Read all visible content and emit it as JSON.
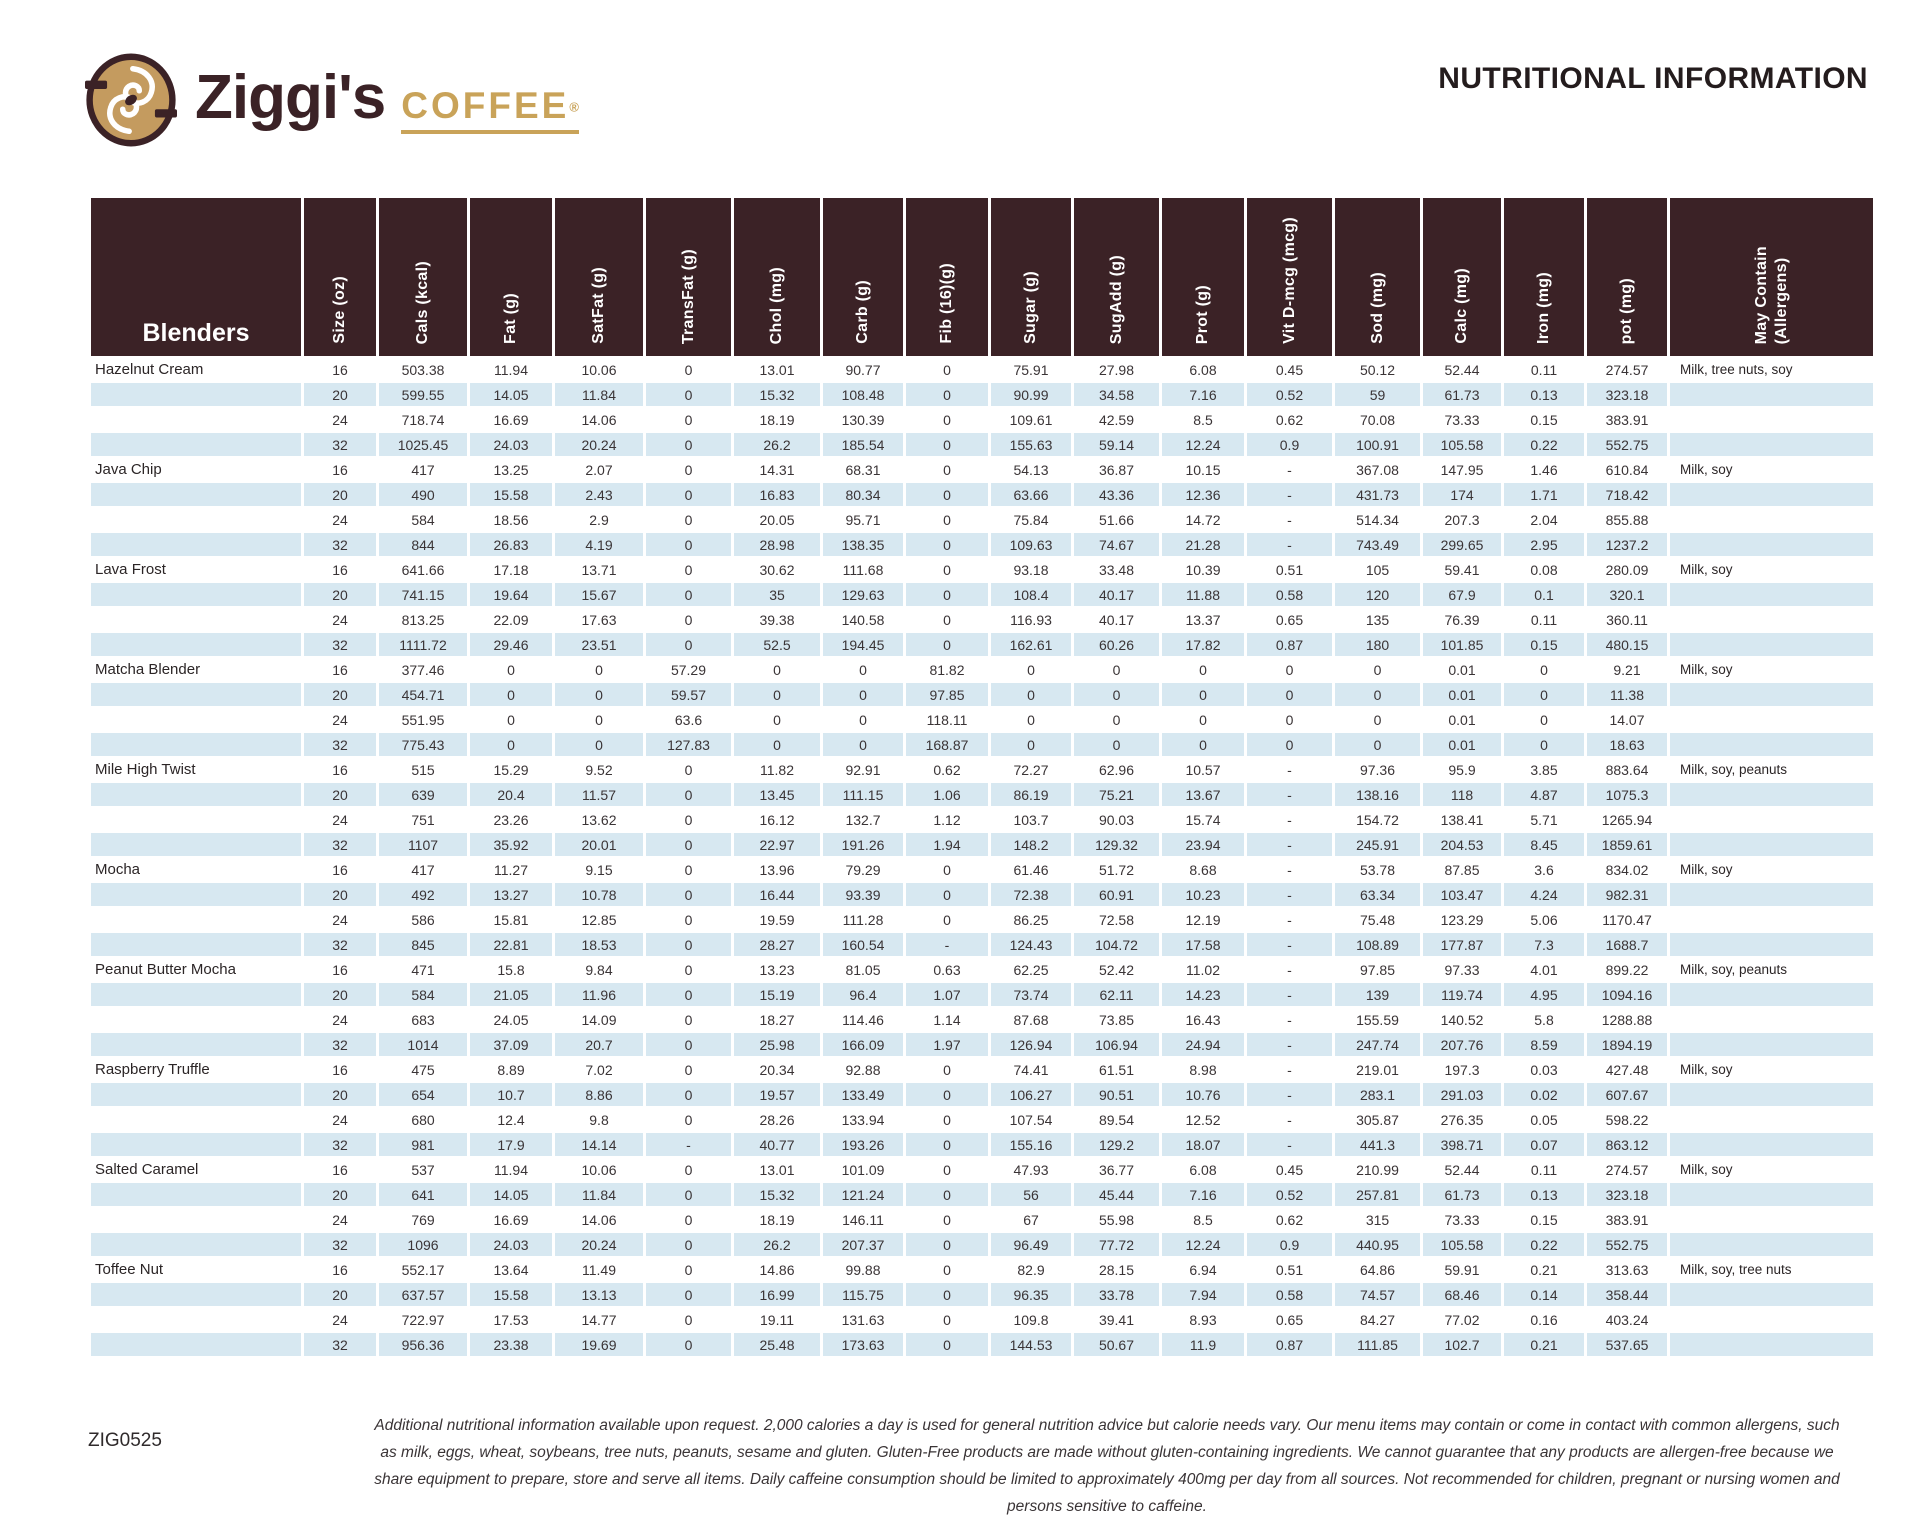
{
  "brand": {
    "name": "Ziggi's",
    "word": "COFFEE",
    "registered": "®"
  },
  "title": "NUTRITIONAL INFORMATION",
  "table": {
    "group_header": "Blenders",
    "columns": [
      "Size (oz)",
      "Cals (kcal)",
      "Fat (g)",
      "SatFat (g)",
      "TransFat (g)",
      "Chol (mg)",
      "Carb (g)",
      "Fib (16)(g)",
      "Sugar (g)",
      "SugAdd (g)",
      "Prot (g)",
      "Vit D-mcg (mcg)",
      "Sod (mg)",
      "Calc (mg)",
      "Iron (mg)",
      "pot (mg)",
      "May Contain\n(Allergens)"
    ],
    "products": [
      {
        "name": "Hazelnut Cream",
        "allergens": "Milk, tree nuts, soy",
        "rows": [
          [
            "16",
            "503.38",
            "11.94",
            "10.06",
            "0",
            "13.01",
            "90.77",
            "0",
            "75.91",
            "27.98",
            "6.08",
            "0.45",
            "50.12",
            "52.44",
            "0.11",
            "274.57"
          ],
          [
            "20",
            "599.55",
            "14.05",
            "11.84",
            "0",
            "15.32",
            "108.48",
            "0",
            "90.99",
            "34.58",
            "7.16",
            "0.52",
            "59",
            "61.73",
            "0.13",
            "323.18"
          ],
          [
            "24",
            "718.74",
            "16.69",
            "14.06",
            "0",
            "18.19",
            "130.39",
            "0",
            "109.61",
            "42.59",
            "8.5",
            "0.62",
            "70.08",
            "73.33",
            "0.15",
            "383.91"
          ],
          [
            "32",
            "1025.45",
            "24.03",
            "20.24",
            "0",
            "26.2",
            "185.54",
            "0",
            "155.63",
            "59.14",
            "12.24",
            "0.9",
            "100.91",
            "105.58",
            "0.22",
            "552.75"
          ]
        ]
      },
      {
        "name": "Java Chip",
        "allergens": "Milk, soy",
        "rows": [
          [
            "16",
            "417",
            "13.25",
            "2.07",
            "0",
            "14.31",
            "68.31",
            "0",
            "54.13",
            "36.87",
            "10.15",
            "-",
            "367.08",
            "147.95",
            "1.46",
            "610.84"
          ],
          [
            "20",
            "490",
            "15.58",
            "2.43",
            "0",
            "16.83",
            "80.34",
            "0",
            "63.66",
            "43.36",
            "12.36",
            "-",
            "431.73",
            "174",
            "1.71",
            "718.42"
          ],
          [
            "24",
            "584",
            "18.56",
            "2.9",
            "0",
            "20.05",
            "95.71",
            "0",
            "75.84",
            "51.66",
            "14.72",
            "-",
            "514.34",
            "207.3",
            "2.04",
            "855.88"
          ],
          [
            "32",
            "844",
            "26.83",
            "4.19",
            "0",
            "28.98",
            "138.35",
            "0",
            "109.63",
            "74.67",
            "21.28",
            "-",
            "743.49",
            "299.65",
            "2.95",
            "1237.2"
          ]
        ]
      },
      {
        "name": "Lava Frost",
        "allergens": "Milk, soy",
        "rows": [
          [
            "16",
            "641.66",
            "17.18",
            "13.71",
            "0",
            "30.62",
            "111.68",
            "0",
            "93.18",
            "33.48",
            "10.39",
            "0.51",
            "105",
            "59.41",
            "0.08",
            "280.09"
          ],
          [
            "20",
            "741.15",
            "19.64",
            "15.67",
            "0",
            "35",
            "129.63",
            "0",
            "108.4",
            "40.17",
            "11.88",
            "0.58",
            "120",
            "67.9",
            "0.1",
            "320.1"
          ],
          [
            "24",
            "813.25",
            "22.09",
            "17.63",
            "0",
            "39.38",
            "140.58",
            "0",
            "116.93",
            "40.17",
            "13.37",
            "0.65",
            "135",
            "76.39",
            "0.11",
            "360.11"
          ],
          [
            "32",
            "1111.72",
            "29.46",
            "23.51",
            "0",
            "52.5",
            "194.45",
            "0",
            "162.61",
            "60.26",
            "17.82",
            "0.87",
            "180",
            "101.85",
            "0.15",
            "480.15"
          ]
        ]
      },
      {
        "name": "Matcha Blender",
        "allergens": "Milk, soy",
        "rows": [
          [
            "16",
            "377.46",
            "0",
            "0",
            "57.29",
            "0",
            "0",
            "81.82",
            "0",
            "0",
            "0",
            "0",
            "0",
            "0.01",
            "0",
            "9.21"
          ],
          [
            "20",
            "454.71",
            "0",
            "0",
            "59.57",
            "0",
            "0",
            "97.85",
            "0",
            "0",
            "0",
            "0",
            "0",
            "0.01",
            "0",
            "11.38"
          ],
          [
            "24",
            "551.95",
            "0",
            "0",
            "63.6",
            "0",
            "0",
            "118.11",
            "0",
            "0",
            "0",
            "0",
            "0",
            "0.01",
            "0",
            "14.07"
          ],
          [
            "32",
            "775.43",
            "0",
            "0",
            "127.83",
            "0",
            "0",
            "168.87",
            "0",
            "0",
            "0",
            "0",
            "0",
            "0.01",
            "0",
            "18.63"
          ]
        ]
      },
      {
        "name": "Mile High Twist",
        "allergens": "Milk, soy, peanuts",
        "rows": [
          [
            "16",
            "515",
            "15.29",
            "9.52",
            "0",
            "11.82",
            "92.91",
            "0.62",
            "72.27",
            "62.96",
            "10.57",
            "-",
            "97.36",
            "95.9",
            "3.85",
            "883.64"
          ],
          [
            "20",
            "639",
            "20.4",
            "11.57",
            "0",
            "13.45",
            "111.15",
            "1.06",
            "86.19",
            "75.21",
            "13.67",
            "-",
            "138.16",
            "118",
            "4.87",
            "1075.3"
          ],
          [
            "24",
            "751",
            "23.26",
            "13.62",
            "0",
            "16.12",
            "132.7",
            "1.12",
            "103.7",
            "90.03",
            "15.74",
            "-",
            "154.72",
            "138.41",
            "5.71",
            "1265.94"
          ],
          [
            "32",
            "1107",
            "35.92",
            "20.01",
            "0",
            "22.97",
            "191.26",
            "1.94",
            "148.2",
            "129.32",
            "23.94",
            "-",
            "245.91",
            "204.53",
            "8.45",
            "1859.61"
          ]
        ]
      },
      {
        "name": "Mocha",
        "allergens": "Milk, soy",
        "rows": [
          [
            "16",
            "417",
            "11.27",
            "9.15",
            "0",
            "13.96",
            "79.29",
            "0",
            "61.46",
            "51.72",
            "8.68",
            "-",
            "53.78",
            "87.85",
            "3.6",
            "834.02"
          ],
          [
            "20",
            "492",
            "13.27",
            "10.78",
            "0",
            "16.44",
            "93.39",
            "0",
            "72.38",
            "60.91",
            "10.23",
            "-",
            "63.34",
            "103.47",
            "4.24",
            "982.31"
          ],
          [
            "24",
            "586",
            "15.81",
            "12.85",
            "0",
            "19.59",
            "111.28",
            "0",
            "86.25",
            "72.58",
            "12.19",
            "-",
            "75.48",
            "123.29",
            "5.06",
            "1170.47"
          ],
          [
            "32",
            "845",
            "22.81",
            "18.53",
            "0",
            "28.27",
            "160.54",
            "-",
            "124.43",
            "104.72",
            "17.58",
            "-",
            "108.89",
            "177.87",
            "7.3",
            "1688.7"
          ]
        ]
      },
      {
        "name": "Peanut Butter Mocha",
        "allergens": "Milk, soy, peanuts",
        "rows": [
          [
            "16",
            "471",
            "15.8",
            "9.84",
            "0",
            "13.23",
            "81.05",
            "0.63",
            "62.25",
            "52.42",
            "11.02",
            "-",
            "97.85",
            "97.33",
            "4.01",
            "899.22"
          ],
          [
            "20",
            "584",
            "21.05",
            "11.96",
            "0",
            "15.19",
            "96.4",
            "1.07",
            "73.74",
            "62.11",
            "14.23",
            "-",
            "139",
            "119.74",
            "4.95",
            "1094.16"
          ],
          [
            "24",
            "683",
            "24.05",
            "14.09",
            "0",
            "18.27",
            "114.46",
            "1.14",
            "87.68",
            "73.85",
            "16.43",
            "-",
            "155.59",
            "140.52",
            "5.8",
            "1288.88"
          ],
          [
            "32",
            "1014",
            "37.09",
            "20.7",
            "0",
            "25.98",
            "166.09",
            "1.97",
            "126.94",
            "106.94",
            "24.94",
            "-",
            "247.74",
            "207.76",
            "8.59",
            "1894.19"
          ]
        ]
      },
      {
        "name": "Raspberry Truffle",
        "allergens": "Milk, soy",
        "rows": [
          [
            "16",
            "475",
            "8.89",
            "7.02",
            "0",
            "20.34",
            "92.88",
            "0",
            "74.41",
            "61.51",
            "8.98",
            "-",
            "219.01",
            "197.3",
            "0.03",
            "427.48"
          ],
          [
            "20",
            "654",
            "10.7",
            "8.86",
            "0",
            "19.57",
            "133.49",
            "0",
            "106.27",
            "90.51",
            "10.76",
            "-",
            "283.1",
            "291.03",
            "0.02",
            "607.67"
          ],
          [
            "24",
            "680",
            "12.4",
            "9.8",
            "0",
            "28.26",
            "133.94",
            "0",
            "107.54",
            "89.54",
            "12.52",
            "-",
            "305.87",
            "276.35",
            "0.05",
            "598.22"
          ],
          [
            "32",
            "981",
            "17.9",
            "14.14",
            "-",
            "40.77",
            "193.26",
            "0",
            "155.16",
            "129.2",
            "18.07",
            "-",
            "441.3",
            "398.71",
            "0.07",
            "863.12"
          ]
        ]
      },
      {
        "name": "Salted Caramel",
        "allergens": "Milk, soy",
        "rows": [
          [
            "16",
            "537",
            "11.94",
            "10.06",
            "0",
            "13.01",
            "101.09",
            "0",
            "47.93",
            "36.77",
            "6.08",
            "0.45",
            "210.99",
            "52.44",
            "0.11",
            "274.57"
          ],
          [
            "20",
            "641",
            "14.05",
            "11.84",
            "0",
            "15.32",
            "121.24",
            "0",
            "56",
            "45.44",
            "7.16",
            "0.52",
            "257.81",
            "61.73",
            "0.13",
            "323.18"
          ],
          [
            "24",
            "769",
            "16.69",
            "14.06",
            "0",
            "18.19",
            "146.11",
            "0",
            "67",
            "55.98",
            "8.5",
            "0.62",
            "315",
            "73.33",
            "0.15",
            "383.91"
          ],
          [
            "32",
            "1096",
            "24.03",
            "20.24",
            "0",
            "26.2",
            "207.37",
            "0",
            "96.49",
            "77.72",
            "12.24",
            "0.9",
            "440.95",
            "105.58",
            "0.22",
            "552.75"
          ]
        ]
      },
      {
        "name": "Toffee Nut",
        "allergens": "Milk, soy, tree nuts",
        "rows": [
          [
            "16",
            "552.17",
            "13.64",
            "11.49",
            "0",
            "14.86",
            "99.88",
            "0",
            "82.9",
            "28.15",
            "6.94",
            "0.51",
            "64.86",
            "59.91",
            "0.21",
            "313.63"
          ],
          [
            "20",
            "637.57",
            "15.58",
            "13.13",
            "0",
            "16.99",
            "115.75",
            "0",
            "96.35",
            "33.78",
            "7.94",
            "0.58",
            "74.57",
            "68.46",
            "0.14",
            "358.44"
          ],
          [
            "24",
            "722.97",
            "17.53",
            "14.77",
            "0",
            "19.11",
            "131.63",
            "0",
            "109.8",
            "39.41",
            "8.93",
            "0.65",
            "84.27",
            "77.02",
            "0.16",
            "403.24"
          ],
          [
            "32",
            "956.36",
            "23.38",
            "19.69",
            "0",
            "25.48",
            "173.63",
            "0",
            "144.53",
            "50.67",
            "11.9",
            "0.87",
            "111.85",
            "102.7",
            "0.21",
            "537.65"
          ]
        ]
      }
    ]
  },
  "footer": {
    "code": "ZIG0525",
    "disclaimer": "Additional nutritional information available upon request. 2,000 calories a day is used for general nutrition advice but calorie needs vary. Our menu items may contain or come in contact with common allergens, such as milk, eggs, wheat, soybeans, tree nuts, peanuts, sesame and gluten. Gluten-Free products are made without gluten-containing ingredients. We cannot guarantee that any products are allergen-free because we share equipment to prepare, store and serve all items. Daily caffeine consumption should be limited to approximately 400mg per day from all sources. Not recommended for children, pregnant or nursing women and persons sensitive to caffeine."
  },
  "colors": {
    "header_bg": "#3b2226",
    "stripe_blue": "#d7e8f1",
    "brand_gold": "#c9a359",
    "title_text": "#241c1d"
  }
}
